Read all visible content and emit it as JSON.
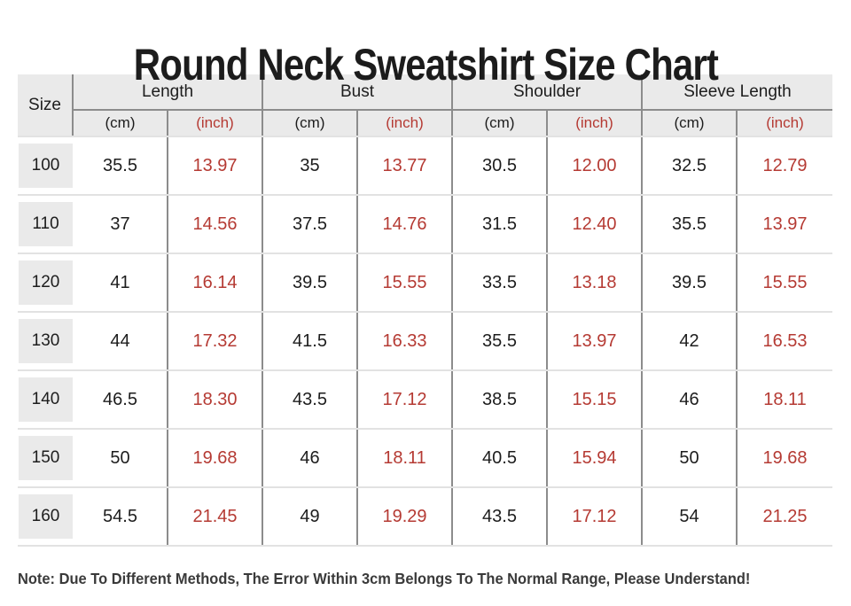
{
  "title": "Round Neck Sweatshirt Size Chart",
  "note": "Note: Due To Different Methods, The Error Within 3cm Belongs To The Normal Range, Please Understand!",
  "colors": {
    "accent_red": "#b53a33",
    "header_bg": "#eaeaea",
    "dark_line": "#8c8c8c",
    "light_line": "#e2e2e2",
    "text": "#1d1d1d"
  },
  "table": {
    "size_header": "Size",
    "unit_cm": "(cm)",
    "unit_inch": "(inch)",
    "groups": [
      {
        "label": "Length"
      },
      {
        "label": "Bust"
      },
      {
        "label": "Shoulder"
      },
      {
        "label": "Sleeve Length"
      }
    ],
    "rows": [
      {
        "size": "100",
        "length_cm": "35.5",
        "length_in": "13.97",
        "bust_cm": "35",
        "bust_in": "13.77",
        "shoulder_cm": "30.5",
        "shoulder_in": "12.00",
        "sleeve_cm": "32.5",
        "sleeve_in": "12.79"
      },
      {
        "size": "110",
        "length_cm": "37",
        "length_in": "14.56",
        "bust_cm": "37.5",
        "bust_in": "14.76",
        "shoulder_cm": "31.5",
        "shoulder_in": "12.40",
        "sleeve_cm": "35.5",
        "sleeve_in": "13.97"
      },
      {
        "size": "120",
        "length_cm": "41",
        "length_in": "16.14",
        "bust_cm": "39.5",
        "bust_in": "15.55",
        "shoulder_cm": "33.5",
        "shoulder_in": "13.18",
        "sleeve_cm": "39.5",
        "sleeve_in": "15.55"
      },
      {
        "size": "130",
        "length_cm": "44",
        "length_in": "17.32",
        "bust_cm": "41.5",
        "bust_in": "16.33",
        "shoulder_cm": "35.5",
        "shoulder_in": "13.97",
        "sleeve_cm": "42",
        "sleeve_in": "16.53"
      },
      {
        "size": "140",
        "length_cm": "46.5",
        "length_in": "18.30",
        "bust_cm": "43.5",
        "bust_in": "17.12",
        "shoulder_cm": "38.5",
        "shoulder_in": "15.15",
        "sleeve_cm": "46",
        "sleeve_in": "18.11"
      },
      {
        "size": "150",
        "length_cm": "50",
        "length_in": "19.68",
        "bust_cm": "46",
        "bust_in": "18.11",
        "shoulder_cm": "40.5",
        "shoulder_in": "15.94",
        "sleeve_cm": "50",
        "sleeve_in": "19.68"
      },
      {
        "size": "160",
        "length_cm": "54.5",
        "length_in": "21.45",
        "bust_cm": "49",
        "bust_in": "19.29",
        "shoulder_cm": "43.5",
        "shoulder_in": "17.12",
        "sleeve_cm": "54",
        "sleeve_in": "21.25"
      }
    ]
  },
  "chart_data": {
    "type": "table",
    "title": "Round Neck Sweatshirt Size Chart",
    "column_groups": [
      "Size",
      "Length",
      "Bust",
      "Shoulder",
      "Sleeve Length"
    ],
    "columns": [
      "Size",
      "Length (cm)",
      "Length (inch)",
      "Bust (cm)",
      "Bust (inch)",
      "Shoulder (cm)",
      "Shoulder (inch)",
      "Sleeve Length (cm)",
      "Sleeve Length (inch)"
    ],
    "rows": [
      [
        "100",
        35.5,
        13.97,
        35,
        13.77,
        30.5,
        12.0,
        32.5,
        12.79
      ],
      [
        "110",
        37,
        14.56,
        37.5,
        14.76,
        31.5,
        12.4,
        35.5,
        13.97
      ],
      [
        "120",
        41,
        16.14,
        39.5,
        15.55,
        33.5,
        13.18,
        39.5,
        15.55
      ],
      [
        "130",
        44,
        17.32,
        41.5,
        16.33,
        35.5,
        13.97,
        42,
        16.53
      ],
      [
        "140",
        46.5,
        18.3,
        43.5,
        17.12,
        38.5,
        15.15,
        46,
        18.11
      ],
      [
        "150",
        50,
        19.68,
        46,
        18.11,
        40.5,
        15.94,
        50,
        19.68
      ],
      [
        "160",
        54.5,
        21.45,
        49,
        19.29,
        43.5,
        17.12,
        54,
        21.25
      ]
    ],
    "note": "Note: Due To Different Methods, The Error Within 3cm Belongs To The Normal Range, Please Understand!"
  }
}
